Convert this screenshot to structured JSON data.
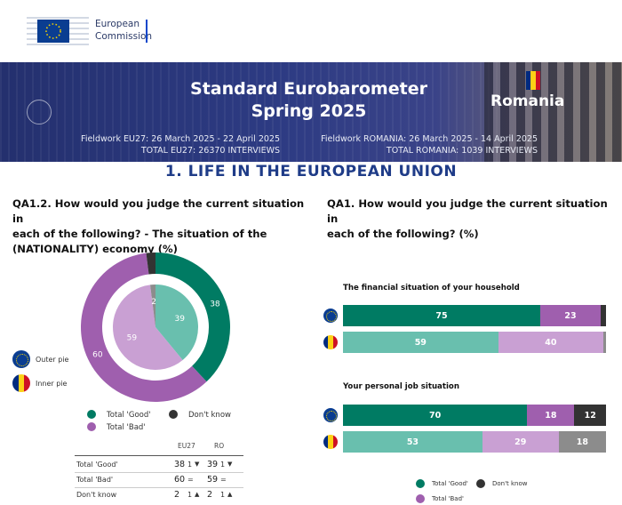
{
  "header": {
    "org_line1": "European",
    "org_line2": "Commission"
  },
  "banner": {
    "title_line1": "Standard Eurobarometer",
    "title_line2": "Spring 2025",
    "country": "Romania",
    "fieldwork_eu": "Fieldwork EU27: 26 March 2025 - 22 April 2025",
    "total_eu": "TOTAL EU27: 26370 INTERVIEWS",
    "fieldwork_ro": "Fieldwork ROMANIA: 26 March 2025 - 14 April 2025",
    "total_ro": "TOTAL ROMANIA: 1039 INTERVIEWS"
  },
  "section_title": "1. LIFE IN THE EUROPEAN UNION",
  "left_question": {
    "line1": "QA1.2. How would you judge the current situation in",
    "line2": "each of the following? - The situation of the",
    "line3": "(NATIONALITY) economy (%)"
  },
  "right_question": {
    "line1": "QA1. How would you judge the current situation in",
    "line2": "each of the following? (%)"
  },
  "pie_legend": {
    "outer": "Outer pie",
    "inner": "Inner pie"
  },
  "category_legend": {
    "good": "Total 'Good'",
    "bad": "Total 'Bad'",
    "dont_know": "Don't know"
  },
  "colors": {
    "good_dark": "#007b63",
    "good_light": "#69bfae",
    "bad_dark": "#9f5fae",
    "bad_light": "#c9a0d3",
    "dont_know_dark": "#333333",
    "dont_know_light": "#8c8c8c",
    "eu_blue": "#0a3d91",
    "eu_yellow": "#f4d000",
    "ro_blue": "#002b7f",
    "ro_yellow": "#fcd116",
    "ro_red": "#ce1126"
  },
  "chart_data": [
    {
      "type": "pie",
      "variant": "nested-donut",
      "series": [
        {
          "ring": "outer",
          "values": [
            38,
            60,
            2
          ],
          "labels": [
            "38",
            "60",
            "2"
          ]
        },
        {
          "ring": "inner",
          "values": [
            39,
            59,
            2
          ],
          "labels": [
            "39",
            "59",
            "2"
          ]
        }
      ],
      "categories": [
        "Total 'Good'",
        "Total 'Bad'",
        "Don't know"
      ],
      "table": {
        "columns": [
          "EU27",
          "RO"
        ],
        "rows": [
          {
            "label": "Total 'Good'",
            "eu": "38",
            "eu_diff": "1",
            "eu_dir": "down",
            "ro": "39",
            "ro_diff": "1",
            "ro_dir": "down"
          },
          {
            "label": "Total 'Bad'",
            "eu": "60",
            "eu_diff": "=",
            "eu_dir": "",
            "ro": "59",
            "ro_diff": "=",
            "ro_dir": ""
          },
          {
            "label": "Don't know",
            "eu": "2",
            "eu_diff": "1",
            "eu_dir": "up",
            "ro": "2",
            "ro_diff": "1",
            "ro_dir": "up"
          }
        ]
      }
    },
    {
      "type": "bar",
      "orientation": "horizontal-stacked",
      "categories": [
        "Total 'Good'",
        "Total 'Bad'",
        "Don't know"
      ],
      "groups": [
        {
          "title": "The financial situation of your household",
          "rows": [
            {
              "who": "EU27",
              "values": [
                75,
                23,
                2
              ],
              "labels": [
                "75",
                "23",
                ""
              ]
            },
            {
              "who": "RO",
              "values": [
                59,
                40,
                1
              ],
              "labels": [
                "59",
                "40",
                ""
              ]
            }
          ]
        },
        {
          "title": "Your personal job situation",
          "rows": [
            {
              "who": "EU27",
              "values": [
                70,
                18,
                12
              ],
              "labels": [
                "70",
                "18",
                "12"
              ]
            },
            {
              "who": "RO",
              "values": [
                53,
                29,
                18
              ],
              "labels": [
                "53",
                "29",
                "18"
              ]
            }
          ]
        }
      ]
    }
  ]
}
